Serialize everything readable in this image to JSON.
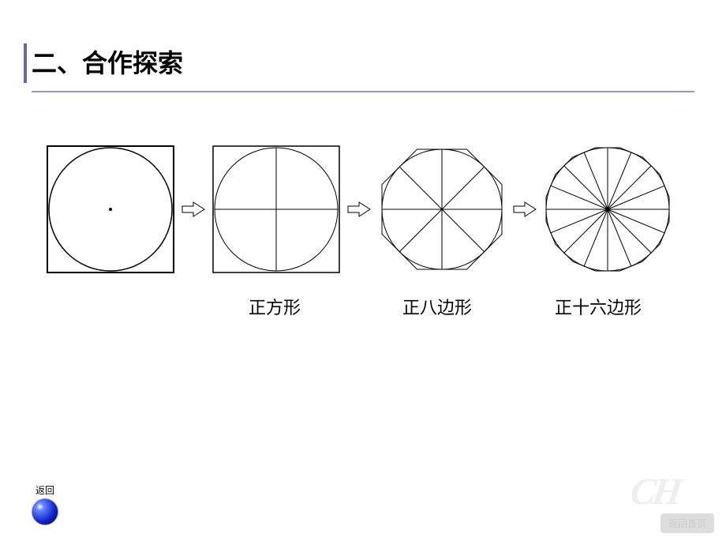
{
  "title": "二、合作探索",
  "title_fontsize": 32,
  "title_color": "#000000",
  "underline_color": "#9999cc",
  "left_bar_color": "#6666aa",
  "background_color": "#ffffff",
  "figures": {
    "stroke_color": "#000000",
    "thick_stroke": 2,
    "thin_stroke": 1,
    "square_size": 160,
    "circle_radius": 78,
    "arrow_fill": "#ffffff",
    "arrow_stroke": "#000000",
    "items": [
      {
        "type": "circle_in_square_dot"
      },
      {
        "type": "circle_in_square_4lines",
        "label": "正方形",
        "sectors": 4
      },
      {
        "type": "circle_in_octagon_8lines",
        "label": "正八边形",
        "sectors": 8
      },
      {
        "type": "circle_in_16gon_16lines",
        "label": "正十六边形",
        "sectors": 16
      }
    ]
  },
  "label_fontsize": 22,
  "back_button": {
    "label": "返回"
  },
  "home_button": {
    "label": "返回首页"
  },
  "watermark_text": "CH",
  "watermark_color": "#eeeeee",
  "sphere_gradient": {
    "highlight": "#ffffff",
    "mid": "#6688ff",
    "dark": "#1122cc",
    "edge": "#000044"
  }
}
